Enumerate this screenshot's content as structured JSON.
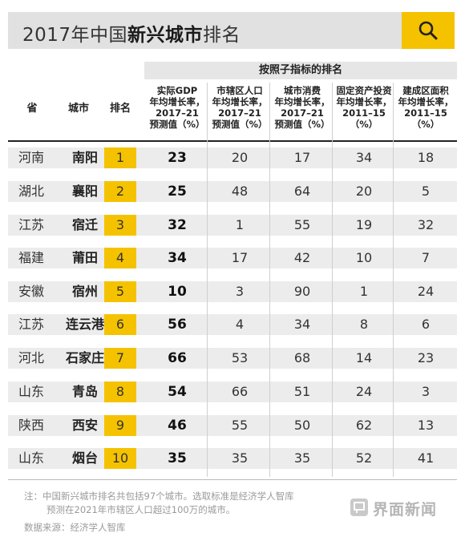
{
  "header": {
    "title_prefix": "2017年中国",
    "title_bold": "新兴城市",
    "title_suffix": "排名",
    "search_icon": "search-icon"
  },
  "table": {
    "group_header": "按照子指标的排名",
    "col_province": "省",
    "col_city": "城市",
    "col_rank": "排名",
    "sub_headers": [
      [
        "实际GDP",
        "年均增长率，",
        "2017–21",
        "预测值（%）"
      ],
      [
        "市辖区人口",
        "年均增长率，",
        "2017–21",
        "预测值（%）"
      ],
      [
        "城市消费",
        "年均增长率，",
        "2017–21",
        "预测值（%）"
      ],
      [
        "固定资产投资",
        "年均增长率，",
        "2011–15",
        "（%）"
      ],
      [
        "建成区面积",
        "年均增长率，",
        "2011–15",
        "（%）"
      ]
    ]
  },
  "chart_data": {
    "type": "table",
    "title": "2017年中国新兴城市排名",
    "columns": [
      "省",
      "城市",
      "排名",
      "实际GDP年均增长率，2017–21预测值（%）",
      "市辖区人口年均增长率，2017–21预测值（%）",
      "城市消费年均增长率，2017–21预测值（%）",
      "固定资产投资年均增长率，2011–15（%）",
      "建成区面积年均增长率，2011–15（%）"
    ],
    "rows": [
      {
        "province": "河南",
        "city": "南阳",
        "rank": "1",
        "gdp": "23",
        "pop": "20",
        "consume": "17",
        "invest": "34",
        "area": "18"
      },
      {
        "province": "湖北",
        "city": "襄阳",
        "rank": "2",
        "gdp": "25",
        "pop": "48",
        "consume": "64",
        "invest": "20",
        "area": "5"
      },
      {
        "province": "江苏",
        "city": "宿迁",
        "rank": "3",
        "gdp": "32",
        "pop": "1",
        "consume": "55",
        "invest": "19",
        "area": "32"
      },
      {
        "province": "福建",
        "city": "莆田",
        "rank": "4",
        "gdp": "34",
        "pop": "17",
        "consume": "42",
        "invest": "10",
        "area": "7"
      },
      {
        "province": "安徽",
        "city": "宿州",
        "rank": "5",
        "gdp": "10",
        "pop": "3",
        "consume": "90",
        "invest": "1",
        "area": "24"
      },
      {
        "province": "江苏",
        "city": "连云港",
        "rank": "6",
        "gdp": "56",
        "pop": "4",
        "consume": "34",
        "invest": "8",
        "area": "6"
      },
      {
        "province": "河北",
        "city": "石家庄",
        "rank": "7",
        "gdp": "66",
        "pop": "53",
        "consume": "68",
        "invest": "14",
        "area": "23"
      },
      {
        "province": "山东",
        "city": "青岛",
        "rank": "8",
        "gdp": "54",
        "pop": "66",
        "consume": "51",
        "invest": "24",
        "area": "3"
      },
      {
        "province": "陕西",
        "city": "西安",
        "rank": "9",
        "gdp": "46",
        "pop": "55",
        "consume": "50",
        "invest": "62",
        "area": "13"
      },
      {
        "province": "山东",
        "city": "烟台",
        "rank": "10",
        "gdp": "35",
        "pop": "35",
        "consume": "35",
        "invest": "52",
        "area": "41"
      }
    ]
  },
  "footer": {
    "note_line1": "注：中国新兴城市排名共包括97个城市。选取标准是经济学人智库",
    "note_line2": "预测在2021年市辖区人口超过100万的城市。",
    "source": "数据来源：经济学人智库",
    "logo_text": "界面新闻"
  },
  "colors": {
    "accent": "#f5c200",
    "header_bg": "#e1e1e1",
    "stripe": "#ececec",
    "note": "#9a9a9a"
  }
}
